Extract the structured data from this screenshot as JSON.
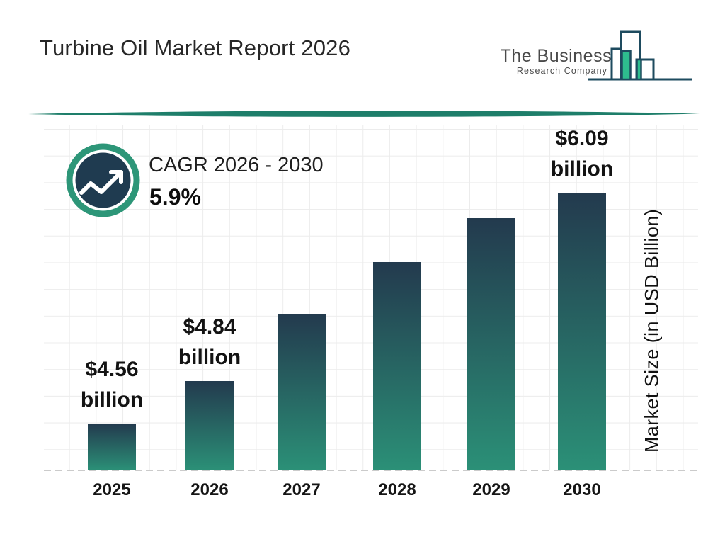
{
  "header": {
    "title": "Turbine Oil Market Report 2026"
  },
  "logo": {
    "name_line1": "The Business",
    "name_line2": "Research Company"
  },
  "cagr": {
    "label": "CAGR 2026 - 2030",
    "value": "5.9%"
  },
  "chart_data": {
    "type": "bar",
    "title": "Turbine Oil Market Report 2026",
    "categories": [
      "2025",
      "2026",
      "2027",
      "2028",
      "2029",
      "2030"
    ],
    "values": [
      4.56,
      4.84,
      5.29,
      5.63,
      5.92,
      6.09
    ],
    "bar_labels": [
      [
        "$4.56",
        "billion"
      ],
      [
        "$4.84",
        "billion"
      ],
      null,
      null,
      null,
      [
        "$6.09",
        "billion"
      ]
    ],
    "xlabel": "",
    "ylabel": "Market Size (in USD Billion)",
    "unit": "USD Billion",
    "ylim": [
      4.25,
      6.1
    ],
    "grid": true,
    "legend": false,
    "notes": "values for 2027-2029 estimated from bar heights; only 2025, 2026 and 2030 carry data labels"
  },
  "colors": {
    "bar_top": "#233A4E",
    "bar_bottom": "#2B9077",
    "accent_teal": "#2D9678",
    "badge_navy": "#1F3B50",
    "divider_teal": "#1E7E6A",
    "logo_green": "#2EBD8E",
    "logo_outline": "#1E4B5F",
    "grid_line": "#ececec",
    "baseline_dash": "#cbcbcb"
  }
}
